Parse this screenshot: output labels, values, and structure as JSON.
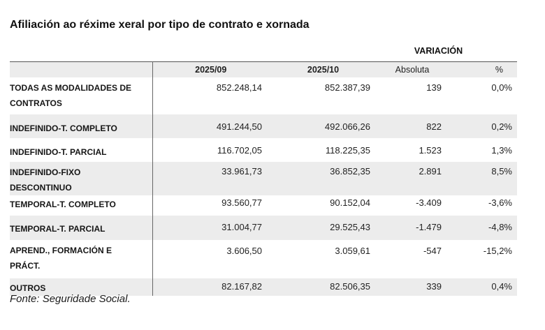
{
  "title": "Afiliación ao réxime xeral por tipo de contrato e xornada",
  "table": {
    "variation_group_label": "VARIACIÓN",
    "columns": [
      "2025/09",
      "2025/10",
      "Absoluta",
      "%"
    ],
    "rows": [
      {
        "label": "TODAS AS MODALIDADES DE CONTRATOS",
        "v1": "852.248,14",
        "v2": "852.387,39",
        "abs": "139",
        "pct": "0,0%"
      },
      {
        "label": "INDEFINIDO-T. COMPLETO",
        "v1": "491.244,50",
        "v2": "492.066,26",
        "abs": "822",
        "pct": "0,2%"
      },
      {
        "label": "INDEFINIDO-T. PARCIAL",
        "v1": "116.702,05",
        "v2": "118.225,35",
        "abs": "1.523",
        "pct": "1,3%"
      },
      {
        "label": "INDEFINIDO-FIXO DESCONTINUO",
        "v1": "33.961,73",
        "v2": "36.852,35",
        "abs": "2.891",
        "pct": "8,5%"
      },
      {
        "label": "TEMPORAL-T. COMPLETO",
        "v1": "93.560,77",
        "v2": "90.152,04",
        "abs": "-3.409",
        "pct": "-3,6%"
      },
      {
        "label": "TEMPORAL-T. PARCIAL",
        "v1": "31.004,77",
        "v2": "29.525,43",
        "abs": "-1.479",
        "pct": "-4,8%"
      },
      {
        "label": "APREND., FORMACIÓN E PRÁCT.",
        "v1": "3.606,50",
        "v2": "3.059,61",
        "abs": "-547",
        "pct": "-15,2%"
      },
      {
        "label": "OUTROS",
        "v1": "82.167,82",
        "v2": "82.506,35",
        "abs": "339",
        "pct": "0,4%"
      }
    ]
  },
  "footer": {
    "source": "Fonte: Seguridade Social."
  },
  "colors": {
    "stripe": "#ececec",
    "top_border": "#555555",
    "column_divider": "#666666",
    "text": "#1f1f1f"
  }
}
